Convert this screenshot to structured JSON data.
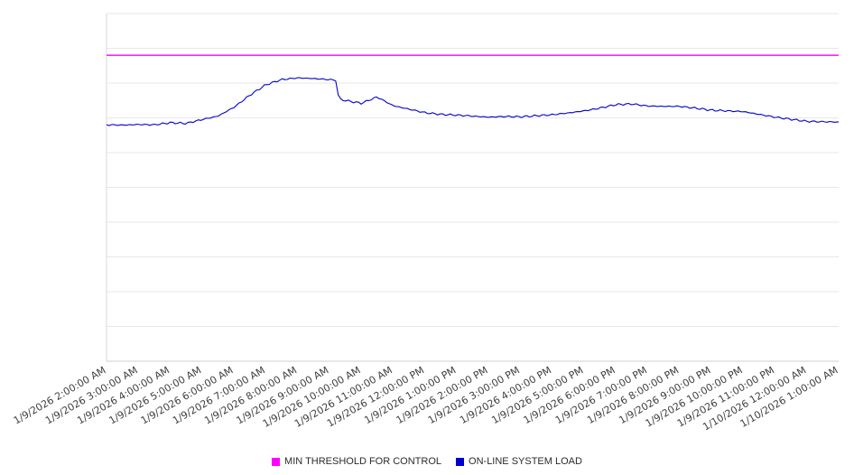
{
  "chart_data": {
    "type": "line",
    "title": "",
    "xlabel": "",
    "ylabel": "",
    "legend_position": "bottom",
    "grid": "horizontal",
    "y_tick_labels_visible": false,
    "ylim": [
      0,
      100
    ],
    "y_gridline_step": 10,
    "x_range": [
      2,
      25
    ],
    "x_tick_labels": [
      "1/9/2026 2:00:00 AM",
      "1/9/2026 3:00:00 AM",
      "1/9/2026 4:00:00 AM",
      "1/9/2026 5:00:00 AM",
      "1/9/2026 6:00:00 AM",
      "1/9/2026 7:00:00 AM",
      "1/9/2026 8:00:00 AM",
      "1/9/2026 9:00:00 AM",
      "1/9/2026 10:00:00 AM",
      "1/9/2026 11:00:00 AM",
      "1/9/2026 12:00:00 PM",
      "1/9/2026 1:00:00 PM",
      "1/9/2026 2:00:00 PM",
      "1/9/2026 3:00:00 PM",
      "1/9/2026 4:00:00 PM",
      "1/9/2026 5:00:00 PM",
      "1/9/2026 6:00:00 PM",
      "1/9/2026 7:00:00 PM",
      "1/9/2026 8:00:00 PM",
      "1/9/2026 9:00:00 PM",
      "1/9/2026 10:00:00 PM",
      "1/9/2026 11:00:00 PM",
      "1/10/2026 12:00:00 AM",
      "1/10/2026 1:00:00 AM"
    ],
    "series": [
      {
        "name": "MIN THRESHOLD FOR CONTROL",
        "type": "constant",
        "color": "#ff00ff",
        "value": 88
      },
      {
        "name": "ON-LINE SYSTEM LOAD",
        "type": "line",
        "color": "#0000cd",
        "x_hours": [
          2,
          2.5,
          3,
          3.5,
          4,
          4.5,
          5,
          5.5,
          6,
          6.5,
          7,
          7.5,
          8,
          8.5,
          9,
          9.2,
          9.3,
          9.5,
          10,
          10.5,
          11,
          11.5,
          12,
          12.5,
          13,
          13.5,
          14,
          14.5,
          15,
          15.5,
          16,
          16.5,
          17,
          17.5,
          18,
          18.5,
          19,
          19.5,
          20,
          20.5,
          21,
          21.5,
          22,
          22.5,
          23,
          23.5,
          24,
          24.5,
          25
        ],
        "values": [
          68.0,
          67.9,
          68.1,
          68.0,
          68.6,
          68.4,
          69.5,
          70.5,
          73.0,
          76.5,
          79.5,
          81.0,
          81.5,
          81.3,
          81.0,
          80.8,
          75.4,
          75.0,
          74.2,
          76.0,
          73.5,
          72.5,
          71.5,
          71.0,
          70.8,
          70.5,
          70.2,
          70.4,
          70.3,
          70.6,
          70.9,
          71.4,
          72.0,
          72.8,
          73.8,
          74.0,
          73.4,
          73.3,
          73.3,
          72.8,
          72.2,
          72.0,
          71.8,
          71.0,
          70.2,
          69.6,
          69.0,
          68.9,
          68.8
        ]
      }
    ]
  }
}
